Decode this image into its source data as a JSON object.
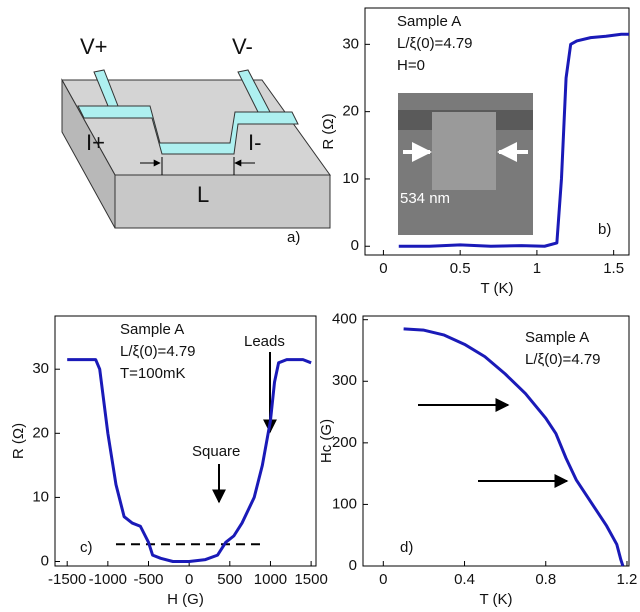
{
  "diagram": {
    "labels": [
      "V+",
      "V-",
      "I+",
      "I-",
      "L"
    ],
    "panel": "a)"
  },
  "chart_data": [
    {
      "type": "line",
      "x_label": "T (K)",
      "y_label": "R (Ω)",
      "color": "#1a1ab8",
      "x": [
        0.1,
        0.3,
        0.5,
        0.7,
        0.9,
        1.05,
        1.13,
        1.16,
        1.19,
        1.22,
        1.26,
        1.35,
        1.45,
        1.55,
        1.6
      ],
      "values": [
        0,
        0,
        0.2,
        0,
        0.1,
        0,
        0.5,
        10,
        25,
        30,
        30.5,
        31,
        31.2,
        31.5,
        31.5
      ],
      "xlim": [
        -0.12,
        1.6
      ],
      "ylim": [
        -1.3,
        35.4
      ],
      "xticks": [
        0,
        0.5,
        1,
        1.5
      ],
      "yticks": [
        0,
        10,
        20,
        30
      ],
      "annotations": [
        "Sample A",
        "L/ξ(0)=4.79",
        "H=0",
        "534 nm",
        "b)"
      ]
    },
    {
      "type": "line",
      "x_label": "H (G)",
      "y_label": "R (Ω)",
      "color": "#1a1ab8",
      "x": [
        -1500,
        -1150,
        -1100,
        -1000,
        -900,
        -800,
        -700,
        -600,
        -500,
        -450,
        -350,
        -200,
        0,
        200,
        350,
        450,
        550,
        650,
        800,
        900,
        1000,
        1050,
        1100,
        1200,
        1400,
        1500
      ],
      "values": [
        31.5,
        31.5,
        30,
        20,
        12,
        7,
        6,
        5.5,
        3,
        1,
        0.5,
        0,
        0,
        0.3,
        1,
        3,
        4,
        6,
        10,
        15,
        22,
        28,
        31,
        31.5,
        31.5,
        31
      ],
      "xlim": [
        -1650,
        1560
      ],
      "ylim": [
        -0.7,
        38.3
      ],
      "xticks": [
        -1500,
        -1000,
        -500,
        0,
        500,
        1000,
        1500
      ],
      "yticks": [
        0,
        10,
        20,
        30
      ],
      "reference_line": {
        "y": 2.7,
        "x": [
          -900,
          900
        ]
      },
      "annotations": [
        "Sample A",
        "L/ξ(0)=4.79",
        "T=100mK",
        "Leads",
        "Square",
        "c)"
      ]
    },
    {
      "type": "line",
      "x_label": "T (K)",
      "y_label": "Hc (G)",
      "color": "#1a1ab8",
      "x": [
        0.1,
        0.2,
        0.3,
        0.4,
        0.5,
        0.6,
        0.7,
        0.8,
        0.85,
        0.9,
        0.95,
        1.0,
        1.05,
        1.1,
        1.15,
        1.17,
        1.18
      ],
      "values": [
        385,
        383,
        375,
        360,
        340,
        312,
        280,
        240,
        215,
        175,
        140,
        115,
        90,
        65,
        35,
        10,
        0
      ],
      "xlim": [
        -0.1,
        1.21
      ],
      "ylim": [
        0,
        406
      ],
      "xticks": [
        0,
        0.4,
        0.8,
        1.2
      ],
      "yticks": [
        0,
        100,
        200,
        300,
        400
      ],
      "annotations": [
        "Sample A",
        "L/ξ(0)=4.79",
        "d)"
      ]
    }
  ]
}
